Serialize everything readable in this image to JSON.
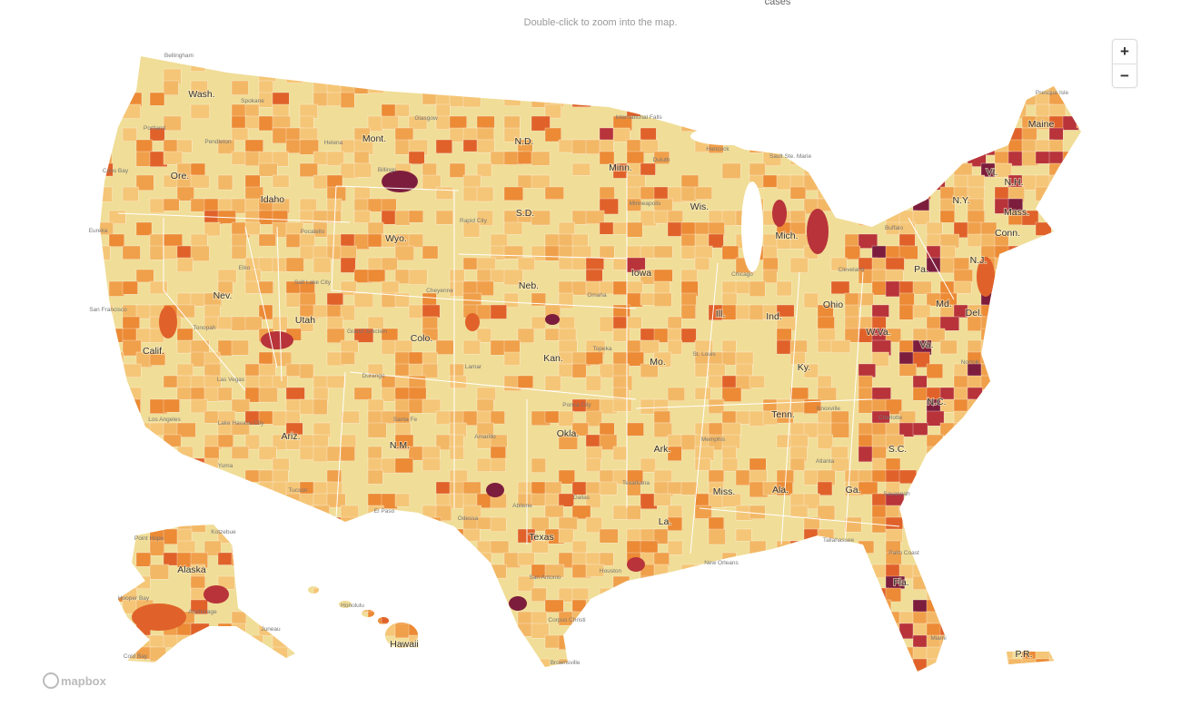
{
  "header": {
    "legend_fragment": "cases",
    "hint": "Double-click to zoom into the map."
  },
  "controls": {
    "zoom_in": "+",
    "zoom_out": "−"
  },
  "state_labels": [
    "Wash.",
    "Mont.",
    "N.D.",
    "Minn.",
    "Ore.",
    "Idaho",
    "Wyo.",
    "S.D.",
    "Wis.",
    "Mich.",
    "N.Y.",
    "Vt.",
    "N.H.",
    "Maine",
    "Mass.",
    "Conn.",
    "N.J.",
    "Nev.",
    "Utah",
    "Colo.",
    "Neb.",
    "Iowa",
    "Ill.",
    "Ind.",
    "Ohio",
    "Pa.",
    "Md.",
    "Del.",
    "W.Va.",
    "Va.",
    "Calif.",
    "Kan.",
    "Mo.",
    "Ky.",
    "Ariz.",
    "N.M.",
    "Okla.",
    "Tenn.",
    "N.C.",
    "Ark.",
    "S.C.",
    "Miss.",
    "Ala.",
    "Ga.",
    "La.",
    "Texas",
    "Fla.",
    "Alaska",
    "Hawaii",
    "P.R."
  ],
  "city_labels": [
    "Bellingham",
    "Spokane",
    "Portland",
    "Pendleton",
    "Helena",
    "Glasgow",
    "Billings",
    "International Falls",
    "Duluth",
    "Hancock",
    "Sault Ste. Marie",
    "Presque Isle",
    "Coos Bay",
    "Rapid City",
    "Minneapolis",
    "Pocatello",
    "Eureka",
    "Elko",
    "Salt Lake City",
    "Cheyenne",
    "Omaha",
    "Chicago",
    "Cleveland",
    "Buffalo",
    "San Francisco",
    "Tonopah",
    "Grand Junction",
    "Lamar",
    "Topeka",
    "St. Louis",
    "Norfolk",
    "Las Vegas",
    "Durango",
    "Ponca City",
    "Knoxville",
    "Charlotte",
    "Los Angeles",
    "Lake Havasu City",
    "Santa Fe",
    "Amarillo",
    "Memphis",
    "Atlanta",
    "Yuma",
    "Tucson",
    "Texarkana",
    "Dallas",
    "Abilene",
    "Savannah",
    "El Paso",
    "Odessa",
    "Tallahassee",
    "Point Hope",
    "Kotzebue",
    "New Orleans",
    "Palm Coast",
    "Houston",
    "San Antonio",
    "Hooper Bay",
    "Honolulu",
    "Anchorage",
    "Corpus Christi",
    "Juneau",
    "Miami",
    "Cold Bay",
    "Brownsville"
  ],
  "attribution": "mapbox"
}
